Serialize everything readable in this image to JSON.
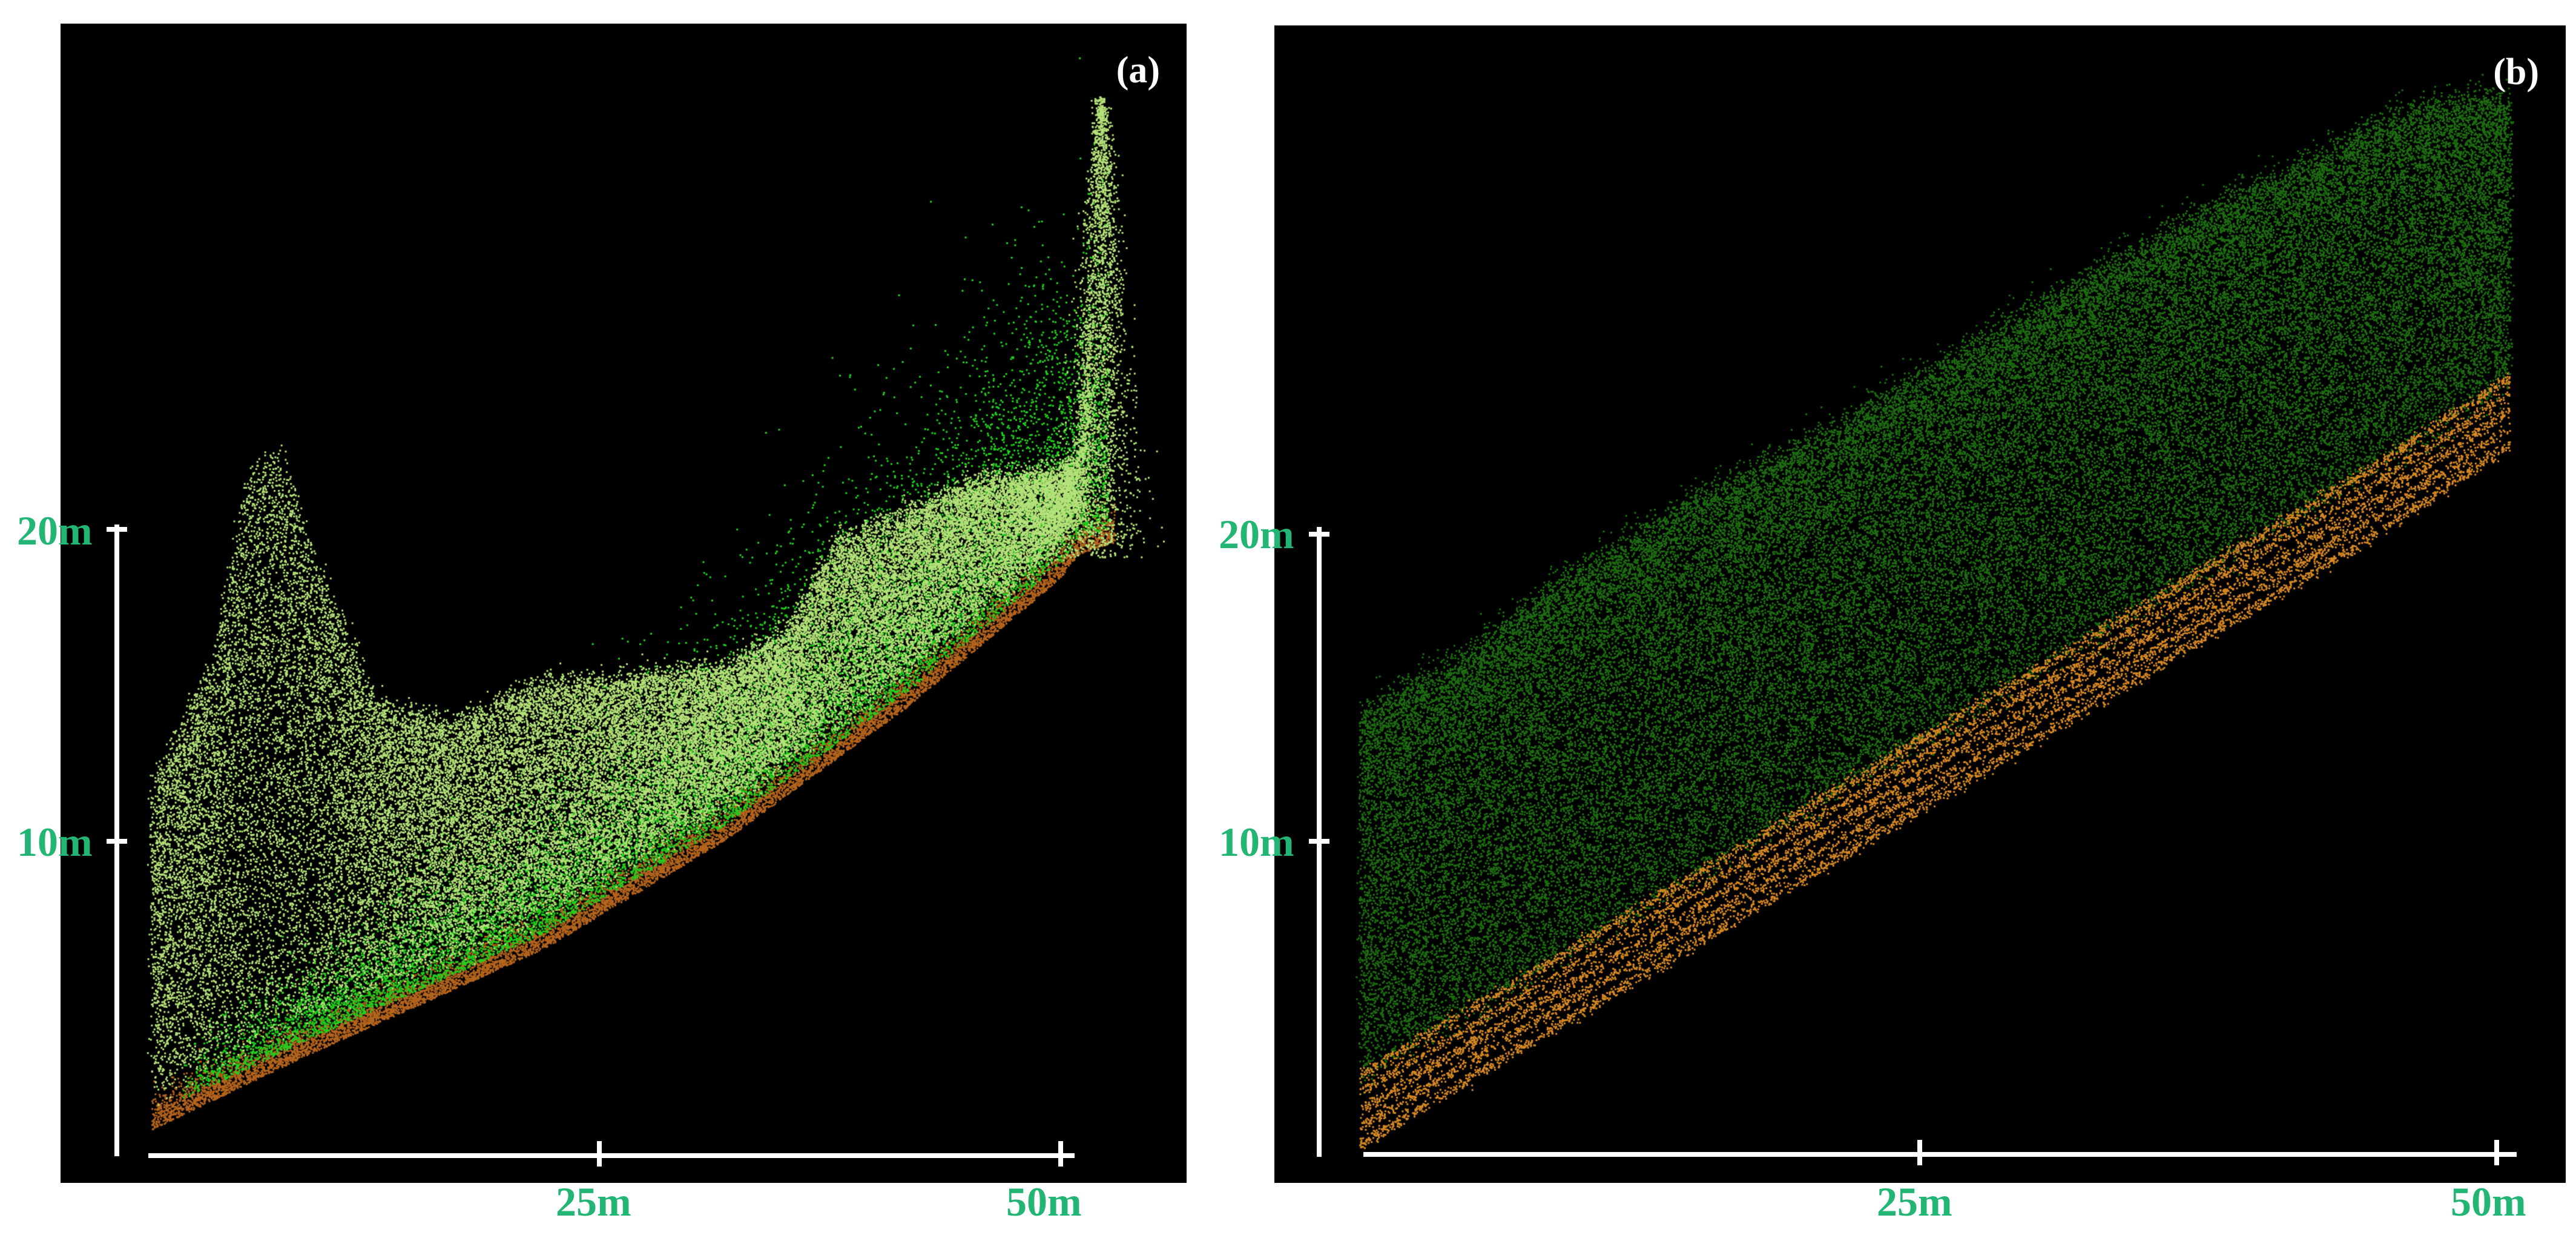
{
  "panels": [
    {
      "label": "(a)",
      "y_ticks": [
        "20m",
        "10m"
      ],
      "x_ticks": [
        "25m",
        "50m"
      ],
      "point_classes": [
        "light-green-canopy",
        "bright-green-understory",
        "brown-ground"
      ]
    },
    {
      "label": "(b)",
      "y_ticks": [
        "20m",
        "10m"
      ],
      "x_ticks": [
        "25m",
        "50m"
      ],
      "point_classes": [
        "dark-green-vegetation",
        "orange-ground"
      ]
    }
  ],
  "colors": {
    "background": "#000000",
    "axis": "#ffffff",
    "tick_label": "#23b574",
    "panel_a_canopy": "#b5e27a",
    "panel_a_understory": "#22d11e",
    "panel_a_ground": "#b5651d",
    "panel_b_vegetation": "#1f6e12",
    "panel_b_ground": "#d78a25"
  }
}
